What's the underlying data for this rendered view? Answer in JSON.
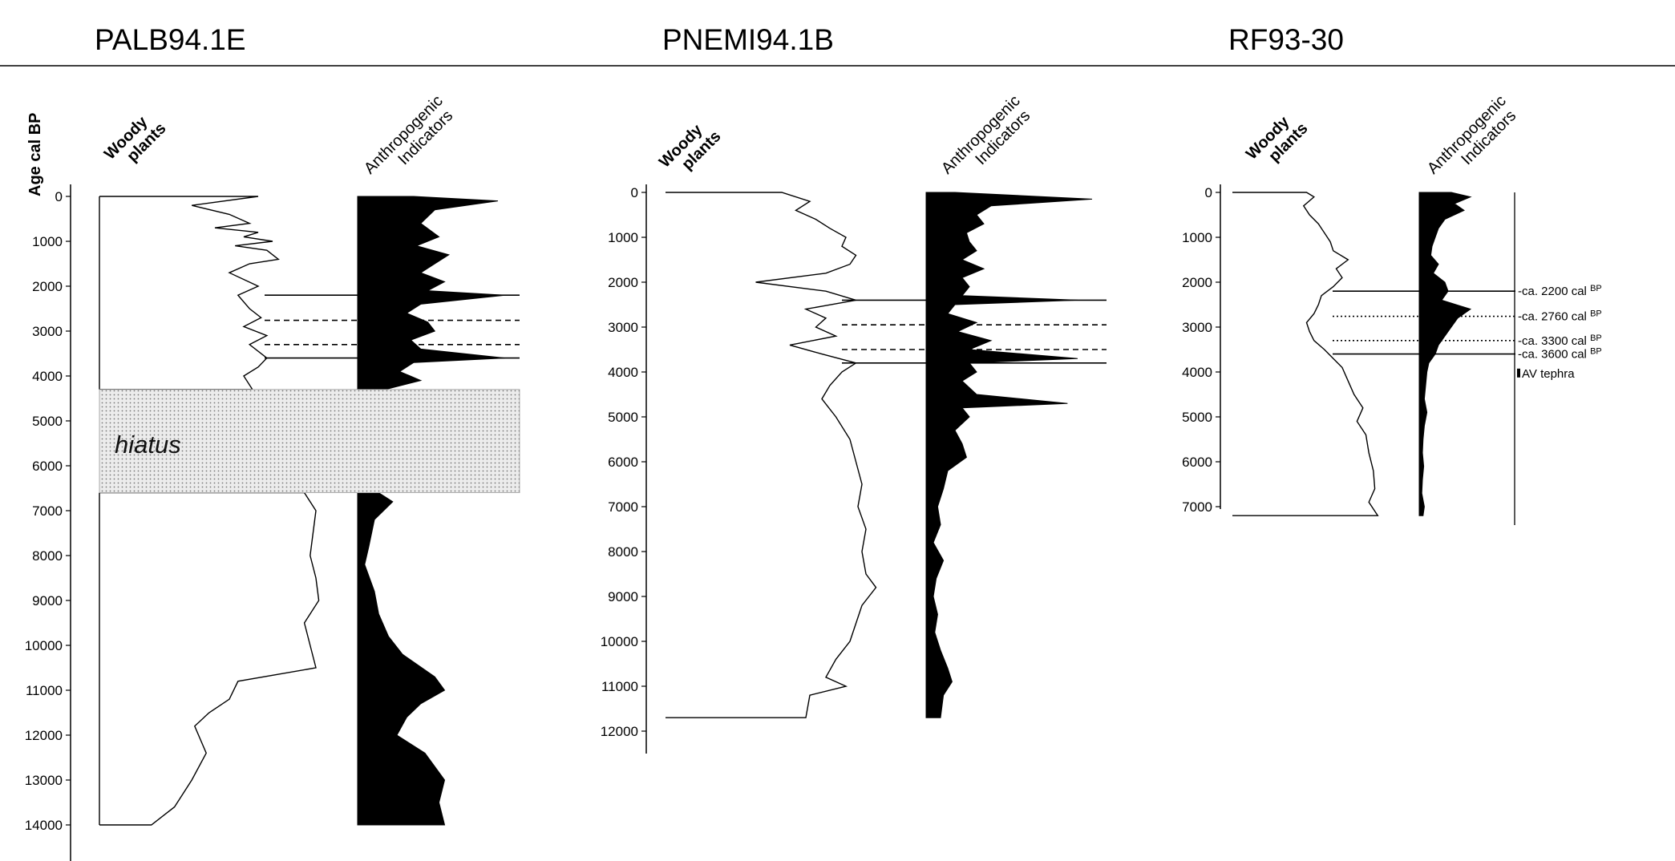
{
  "figure": {
    "y_axis_label": "Age cal BP",
    "woody_label": [
      "Woody",
      "plants"
    ],
    "anthro_label": [
      "Anthropogenic",
      "Indicators"
    ],
    "hiatus_label": "hiatus"
  },
  "chart_data": [
    {
      "type": "area",
      "title": "PALB94.1E",
      "ylabel": "Age cal BP",
      "ylim": [
        0,
        14000
      ],
      "yticks": [
        0,
        1000,
        2000,
        3000,
        4000,
        5000,
        6000,
        7000,
        8000,
        9000,
        10000,
        11000,
        12000,
        13000,
        14000
      ],
      "hiatus": [
        4300,
        6600
      ],
      "events": [
        {
          "age": 2200,
          "style": "solid"
        },
        {
          "age": 2760,
          "style": "dashed"
        },
        {
          "age": 3300,
          "style": "dashed"
        },
        {
          "age": 3600,
          "style": "solid"
        }
      ],
      "series": [
        {
          "name": "Woody plants",
          "points": [
            [
              0,
              0.55
            ],
            [
              200,
              0.32
            ],
            [
              400,
              0.45
            ],
            [
              600,
              0.52
            ],
            [
              700,
              0.4
            ],
            [
              800,
              0.55
            ],
            [
              900,
              0.5
            ],
            [
              1000,
              0.6
            ],
            [
              1100,
              0.47
            ],
            [
              1200,
              0.58
            ],
            [
              1400,
              0.62
            ],
            [
              1500,
              0.52
            ],
            [
              1700,
              0.45
            ],
            [
              2000,
              0.55
            ],
            [
              2200,
              0.48
            ],
            [
              2500,
              0.52
            ],
            [
              2700,
              0.56
            ],
            [
              2900,
              0.5
            ],
            [
              3100,
              0.58
            ],
            [
              3300,
              0.52
            ],
            [
              3600,
              0.58
            ],
            [
              3800,
              0.55
            ],
            [
              4000,
              0.5
            ],
            [
              4300,
              0.53
            ],
            [
              6600,
              0.71
            ],
            [
              7000,
              0.75
            ],
            [
              7500,
              0.74
            ],
            [
              8000,
              0.73
            ],
            [
              8500,
              0.75
            ],
            [
              9000,
              0.76
            ],
            [
              9500,
              0.71
            ],
            [
              10000,
              0.73
            ],
            [
              10500,
              0.75
            ],
            [
              10800,
              0.48
            ],
            [
              11200,
              0.45
            ],
            [
              11500,
              0.38
            ],
            [
              11800,
              0.33
            ],
            [
              12400,
              0.37
            ],
            [
              13000,
              0.32
            ],
            [
              13600,
              0.26
            ],
            [
              14000,
              0.18
            ]
          ]
        },
        {
          "name": "Anthropogenic Indicators",
          "points": [
            [
              0,
              0.4
            ],
            [
              100,
              1.0
            ],
            [
              300,
              0.55
            ],
            [
              600,
              0.45
            ],
            [
              900,
              0.58
            ],
            [
              1100,
              0.42
            ],
            [
              1300,
              0.65
            ],
            [
              1500,
              0.55
            ],
            [
              1700,
              0.45
            ],
            [
              1900,
              0.62
            ],
            [
              2100,
              0.5
            ],
            [
              2200,
              1.05
            ],
            [
              2400,
              0.45
            ],
            [
              2600,
              0.35
            ],
            [
              2800,
              0.5
            ],
            [
              3000,
              0.55
            ],
            [
              3200,
              0.38
            ],
            [
              3400,
              0.45
            ],
            [
              3600,
              1.05
            ],
            [
              3700,
              0.4
            ],
            [
              3900,
              0.3
            ],
            [
              4100,
              0.45
            ],
            [
              4300,
              0.2
            ],
            [
              6600,
              0.15
            ],
            [
              6800,
              0.25
            ],
            [
              7200,
              0.12
            ],
            [
              7800,
              0.08
            ],
            [
              8200,
              0.05
            ],
            [
              8800,
              0.12
            ],
            [
              9300,
              0.15
            ],
            [
              9800,
              0.22
            ],
            [
              10200,
              0.32
            ],
            [
              10700,
              0.55
            ],
            [
              11000,
              0.62
            ],
            [
              11300,
              0.45
            ],
            [
              11600,
              0.35
            ],
            [
              12000,
              0.28
            ],
            [
              12400,
              0.48
            ],
            [
              13000,
              0.62
            ],
            [
              13500,
              0.58
            ],
            [
              14000,
              0.62
            ]
          ]
        }
      ]
    },
    {
      "type": "area",
      "title": "PNEMI94.1B",
      "ylim": [
        0,
        12000
      ],
      "yticks": [
        0,
        1000,
        2000,
        3000,
        4000,
        5000,
        6000,
        7000,
        8000,
        9000,
        10000,
        11000,
        12000
      ],
      "events": [
        {
          "age": 2400,
          "style": "solid"
        },
        {
          "age": 2950,
          "style": "dashed"
        },
        {
          "age": 3500,
          "style": "dashed"
        },
        {
          "age": 3800,
          "style": "solid"
        }
      ],
      "series": [
        {
          "name": "Woody plants",
          "points": [
            [
              0,
              0.58
            ],
            [
              200,
              0.72
            ],
            [
              400,
              0.65
            ],
            [
              600,
              0.75
            ],
            [
              800,
              0.82
            ],
            [
              1000,
              0.9
            ],
            [
              1200,
              0.88
            ],
            [
              1400,
              0.95
            ],
            [
              1600,
              0.92
            ],
            [
              1800,
              0.8
            ],
            [
              2000,
              0.45
            ],
            [
              2200,
              0.8
            ],
            [
              2400,
              0.95
            ],
            [
              2600,
              0.7
            ],
            [
              2800,
              0.8
            ],
            [
              3000,
              0.75
            ],
            [
              3200,
              0.85
            ],
            [
              3400,
              0.62
            ],
            [
              3600,
              0.78
            ],
            [
              3800,
              0.95
            ],
            [
              4000,
              0.88
            ],
            [
              4300,
              0.82
            ],
            [
              4600,
              0.78
            ],
            [
              5000,
              0.85
            ],
            [
              5500,
              0.92
            ],
            [
              6000,
              0.95
            ],
            [
              6500,
              0.98
            ],
            [
              7000,
              0.96
            ],
            [
              7500,
              1.0
            ],
            [
              8000,
              0.98
            ],
            [
              8500,
              1.0
            ],
            [
              8800,
              1.05
            ],
            [
              9200,
              0.98
            ],
            [
              9600,
              0.95
            ],
            [
              10000,
              0.92
            ],
            [
              10400,
              0.85
            ],
            [
              10800,
              0.8
            ],
            [
              11000,
              0.9
            ],
            [
              11200,
              0.72
            ],
            [
              11700,
              0.7
            ]
          ]
        },
        {
          "name": "Anthropogenic Indicators",
          "points": [
            [
              0,
              0.2
            ],
            [
              150,
              1.15
            ],
            [
              300,
              0.45
            ],
            [
              500,
              0.35
            ],
            [
              700,
              0.4
            ],
            [
              900,
              0.28
            ],
            [
              1100,
              0.3
            ],
            [
              1300,
              0.35
            ],
            [
              1500,
              0.25
            ],
            [
              1700,
              0.4
            ],
            [
              1900,
              0.25
            ],
            [
              2100,
              0.3
            ],
            [
              2300,
              0.25
            ],
            [
              2400,
              1.05
            ],
            [
              2500,
              0.2
            ],
            [
              2700,
              0.15
            ],
            [
              2900,
              0.35
            ],
            [
              3100,
              0.22
            ],
            [
              3300,
              0.45
            ],
            [
              3500,
              0.3
            ],
            [
              3700,
              1.05
            ],
            [
              3800,
              0.3
            ],
            [
              4000,
              0.35
            ],
            [
              4200,
              0.25
            ],
            [
              4500,
              0.35
            ],
            [
              4700,
              0.98
            ],
            [
              4800,
              0.25
            ],
            [
              5000,
              0.3
            ],
            [
              5300,
              0.2
            ],
            [
              5600,
              0.25
            ],
            [
              5900,
              0.28
            ],
            [
              6200,
              0.15
            ],
            [
              6600,
              0.12
            ],
            [
              7000,
              0.08
            ],
            [
              7400,
              0.1
            ],
            [
              7800,
              0.05
            ],
            [
              8200,
              0.12
            ],
            [
              8600,
              0.07
            ],
            [
              9000,
              0.05
            ],
            [
              9400,
              0.08
            ],
            [
              9800,
              0.06
            ],
            [
              10200,
              0.1
            ],
            [
              10600,
              0.15
            ],
            [
              10900,
              0.18
            ],
            [
              11200,
              0.12
            ],
            [
              11700,
              0.1
            ]
          ]
        }
      ]
    },
    {
      "type": "area",
      "title": "RF93-30",
      "ylim": [
        0,
        7000
      ],
      "yticks": [
        0,
        1000,
        2000,
        3000,
        4000,
        5000,
        6000,
        7000
      ],
      "events": [
        {
          "age": 2200,
          "style": "solid",
          "label": "ca. 2200 cal",
          "unit": "BP"
        },
        {
          "age": 2760,
          "style": "dotted",
          "label": "ca. 2760 cal",
          "unit": "BP"
        },
        {
          "age": 3300,
          "style": "dotted",
          "label": "ca. 3300 cal",
          "unit": "BP"
        },
        {
          "age": 3600,
          "style": "solid",
          "label": "ca. 3600 cal",
          "unit": "BP"
        }
      ],
      "tephra": {
        "age": 4050,
        "label": "AV tephra"
      },
      "series": [
        {
          "name": "Woody plants",
          "points": [
            [
              0,
              0.5
            ],
            [
              100,
              0.55
            ],
            [
              300,
              0.48
            ],
            [
              500,
              0.52
            ],
            [
              700,
              0.58
            ],
            [
              900,
              0.62
            ],
            [
              1100,
              0.66
            ],
            [
              1300,
              0.68
            ],
            [
              1500,
              0.78
            ],
            [
              1700,
              0.7
            ],
            [
              1900,
              0.74
            ],
            [
              2100,
              0.68
            ],
            [
              2300,
              0.6
            ],
            [
              2500,
              0.58
            ],
            [
              2700,
              0.55
            ],
            [
              2900,
              0.5
            ],
            [
              3100,
              0.52
            ],
            [
              3300,
              0.55
            ],
            [
              3500,
              0.62
            ],
            [
              3700,
              0.68
            ],
            [
              3900,
              0.74
            ],
            [
              4200,
              0.78
            ],
            [
              4500,
              0.82
            ],
            [
              4800,
              0.88
            ],
            [
              5100,
              0.84
            ],
            [
              5400,
              0.9
            ],
            [
              5800,
              0.92
            ],
            [
              6200,
              0.95
            ],
            [
              6600,
              0.96
            ],
            [
              6900,
              0.92
            ],
            [
              7200,
              0.98
            ]
          ]
        },
        {
          "name": "Anthropogenic Indicators",
          "points": [
            [
              0,
              0.5
            ],
            [
              100,
              0.8
            ],
            [
              250,
              0.55
            ],
            [
              400,
              0.7
            ],
            [
              600,
              0.4
            ],
            [
              800,
              0.3
            ],
            [
              1000,
              0.25
            ],
            [
              1200,
              0.2
            ],
            [
              1400,
              0.18
            ],
            [
              1600,
              0.3
            ],
            [
              1800,
              0.22
            ],
            [
              2000,
              0.4
            ],
            [
              2200,
              0.45
            ],
            [
              2400,
              0.35
            ],
            [
              2600,
              0.8
            ],
            [
              2800,
              0.6
            ],
            [
              3000,
              0.5
            ],
            [
              3200,
              0.4
            ],
            [
              3400,
              0.3
            ],
            [
              3600,
              0.25
            ],
            [
              3800,
              0.15
            ],
            [
              4000,
              0.12
            ],
            [
              4300,
              0.1
            ],
            [
              4600,
              0.08
            ],
            [
              4900,
              0.12
            ],
            [
              5200,
              0.08
            ],
            [
              5500,
              0.06
            ],
            [
              5800,
              0.05
            ],
            [
              6100,
              0.07
            ],
            [
              6400,
              0.05
            ],
            [
              6700,
              0.04
            ],
            [
              7000,
              0.08
            ],
            [
              7200,
              0.06
            ]
          ]
        }
      ]
    }
  ]
}
